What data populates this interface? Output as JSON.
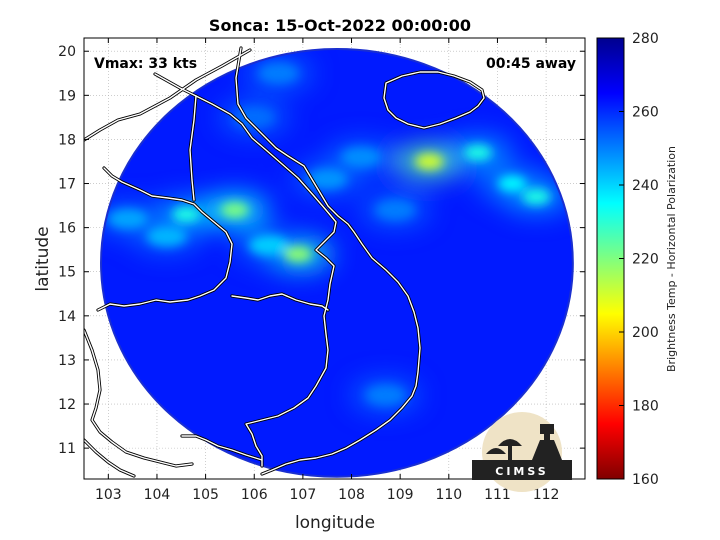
{
  "chart_data": {
    "type": "heatmap",
    "title": "Sonca: 15-Oct-2022 00:00:00",
    "xlabel": "longitude",
    "ylabel": "latitude",
    "xlim": [
      102.5,
      112.8
    ],
    "ylim": [
      10.3,
      20.3
    ],
    "x_ticks": [
      103,
      104,
      105,
      106,
      107,
      108,
      109,
      110,
      111,
      112
    ],
    "y_ticks": [
      11,
      12,
      13,
      14,
      15,
      16,
      17,
      18,
      19,
      20
    ],
    "grid": true,
    "colorbar": {
      "label": "Brightness Temp - Horizontal Polarization",
      "range": [
        160,
        280
      ],
      "ticks": [
        160,
        180,
        200,
        220,
        240,
        260,
        280
      ],
      "colormap": "jet"
    },
    "annotations": {
      "vmax": "Vmax: 33 kts",
      "away": "00:45 away"
    },
    "swath": {
      "center_lon": 107.7,
      "center_lat": 15.2,
      "radius_deg": 4.85
    },
    "background_tb": 262,
    "features": [
      {
        "lon": 104.6,
        "lat": 16.3,
        "tb": 232
      },
      {
        "lon": 105.6,
        "lat": 16.4,
        "tb": 220
      },
      {
        "lon": 103.4,
        "lat": 16.2,
        "tb": 245
      },
      {
        "lon": 104.2,
        "lat": 15.8,
        "tb": 243
      },
      {
        "lon": 106.9,
        "lat": 15.4,
        "tb": 218
      },
      {
        "lon": 106.3,
        "lat": 15.6,
        "tb": 240
      },
      {
        "lon": 109.6,
        "lat": 17.5,
        "tb": 210
      },
      {
        "lon": 110.6,
        "lat": 17.7,
        "tb": 232
      },
      {
        "lon": 111.3,
        "lat": 17.0,
        "tb": 235
      },
      {
        "lon": 111.8,
        "lat": 16.7,
        "tb": 232
      },
      {
        "lon": 108.2,
        "lat": 17.6,
        "tb": 248
      },
      {
        "lon": 107.5,
        "lat": 17.1,
        "tb": 247
      },
      {
        "lon": 106.0,
        "lat": 18.5,
        "tb": 252
      },
      {
        "lon": 106.5,
        "lat": 19.5,
        "tb": 250
      },
      {
        "lon": 108.9,
        "lat": 16.4,
        "tb": 250
      },
      {
        "lon": 108.7,
        "lat": 12.2,
        "tb": 250
      }
    ]
  },
  "logo": {
    "text": "CIMSS",
    "colors": {
      "bg": "#efe3c6",
      "ink": "#222222"
    }
  },
  "colors": {
    "frame": "#000000",
    "grid": "#b0b0b0",
    "coast": "#ffffff"
  }
}
